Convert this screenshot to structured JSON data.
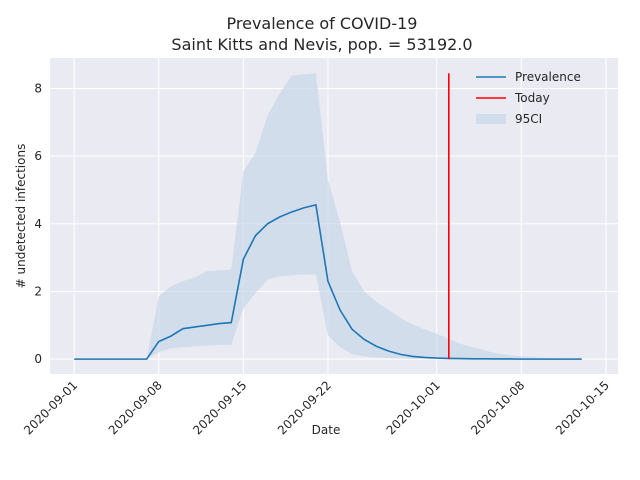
{
  "chart_data": {
    "type": "line",
    "title": "Prevalence of COVID-19",
    "subtitle": "Saint Kitts and Nevis, pop. = 53192.0",
    "xlabel": "Date",
    "ylabel": "# undetected infections",
    "xlim": [
      "2020-08-30",
      "2020-10-16"
    ],
    "ylim": [
      -0.44,
      8.9
    ],
    "x_ticks": [
      "2020-09-01",
      "2020-09-08",
      "2020-09-15",
      "2020-09-22",
      "2020-10-01",
      "2020-10-08",
      "2020-10-15"
    ],
    "y_ticks": [
      0,
      2,
      4,
      6,
      8
    ],
    "grid": true,
    "legend_position": "top-right",
    "colors": {
      "background": "#eaeaf2",
      "grid": "#ffffff",
      "prevalence": "#1f77b4",
      "today": "#ff0000",
      "ci": "#c8d7ea"
    },
    "legend": [
      {
        "label": "Prevalence",
        "kind": "line",
        "color": "#1f77b4"
      },
      {
        "label": "Today",
        "kind": "line",
        "color": "#ff0000"
      },
      {
        "label": "95CI",
        "kind": "patch",
        "color": "#c8d7ea"
      }
    ],
    "series": [
      {
        "name": "Prevalence",
        "x": [
          "2020-09-01",
          "2020-09-02",
          "2020-09-03",
          "2020-09-04",
          "2020-09-05",
          "2020-09-06",
          "2020-09-07",
          "2020-09-08",
          "2020-09-09",
          "2020-09-10",
          "2020-09-11",
          "2020-09-12",
          "2020-09-13",
          "2020-09-14",
          "2020-09-15",
          "2020-09-16",
          "2020-09-17",
          "2020-09-18",
          "2020-09-19",
          "2020-09-20",
          "2020-09-21",
          "2020-09-22",
          "2020-09-23",
          "2020-09-24",
          "2020-09-25",
          "2020-09-26",
          "2020-09-27",
          "2020-09-28",
          "2020-09-29",
          "2020-09-30",
          "2020-10-01",
          "2020-10-02",
          "2020-10-03",
          "2020-10-04",
          "2020-10-05",
          "2020-10-06",
          "2020-10-07",
          "2020-10-08",
          "2020-10-09",
          "2020-10-10",
          "2020-10-11",
          "2020-10-12",
          "2020-10-13"
        ],
        "y": [
          0,
          0,
          0,
          0,
          0,
          0,
          0,
          0.52,
          0.68,
          0.9,
          0.95,
          1.0,
          1.05,
          1.08,
          2.95,
          3.65,
          4.0,
          4.2,
          4.35,
          4.47,
          4.56,
          2.3,
          1.45,
          0.88,
          0.58,
          0.38,
          0.24,
          0.14,
          0.08,
          0.05,
          0.03,
          0.02,
          0.015,
          0.01,
          0.01,
          0.005,
          0.005,
          0,
          0,
          0,
          0,
          0,
          0
        ]
      }
    ],
    "ci": {
      "name": "95CI",
      "lower": [
        0,
        0,
        0,
        0,
        0,
        0,
        0,
        0.2,
        0.32,
        0.35,
        0.38,
        0.4,
        0.42,
        0.42,
        1.5,
        1.95,
        2.35,
        2.45,
        2.48,
        2.5,
        2.5,
        0.7,
        0.35,
        0.15,
        0.08,
        0.05,
        0.03,
        0.02,
        0.01,
        0.01,
        0.005,
        0,
        0,
        0,
        0,
        0,
        0,
        0,
        0,
        0,
        0,
        0,
        0
      ],
      "upper": [
        0,
        0,
        0,
        0,
        0,
        0,
        0,
        1.85,
        2.15,
        2.3,
        2.42,
        2.6,
        2.62,
        2.65,
        5.55,
        6.1,
        7.2,
        7.85,
        8.38,
        8.42,
        8.45,
        5.3,
        4.05,
        2.6,
        2.0,
        1.7,
        1.45,
        1.22,
        1.03,
        0.88,
        0.75,
        0.6,
        0.45,
        0.35,
        0.25,
        0.17,
        0.12,
        0.08,
        0.06,
        0.04,
        0.03,
        0.02,
        0.02
      ]
    },
    "today": {
      "name": "Today",
      "date": "2020-10-02",
      "y_range": [
        0,
        8.45
      ]
    }
  }
}
